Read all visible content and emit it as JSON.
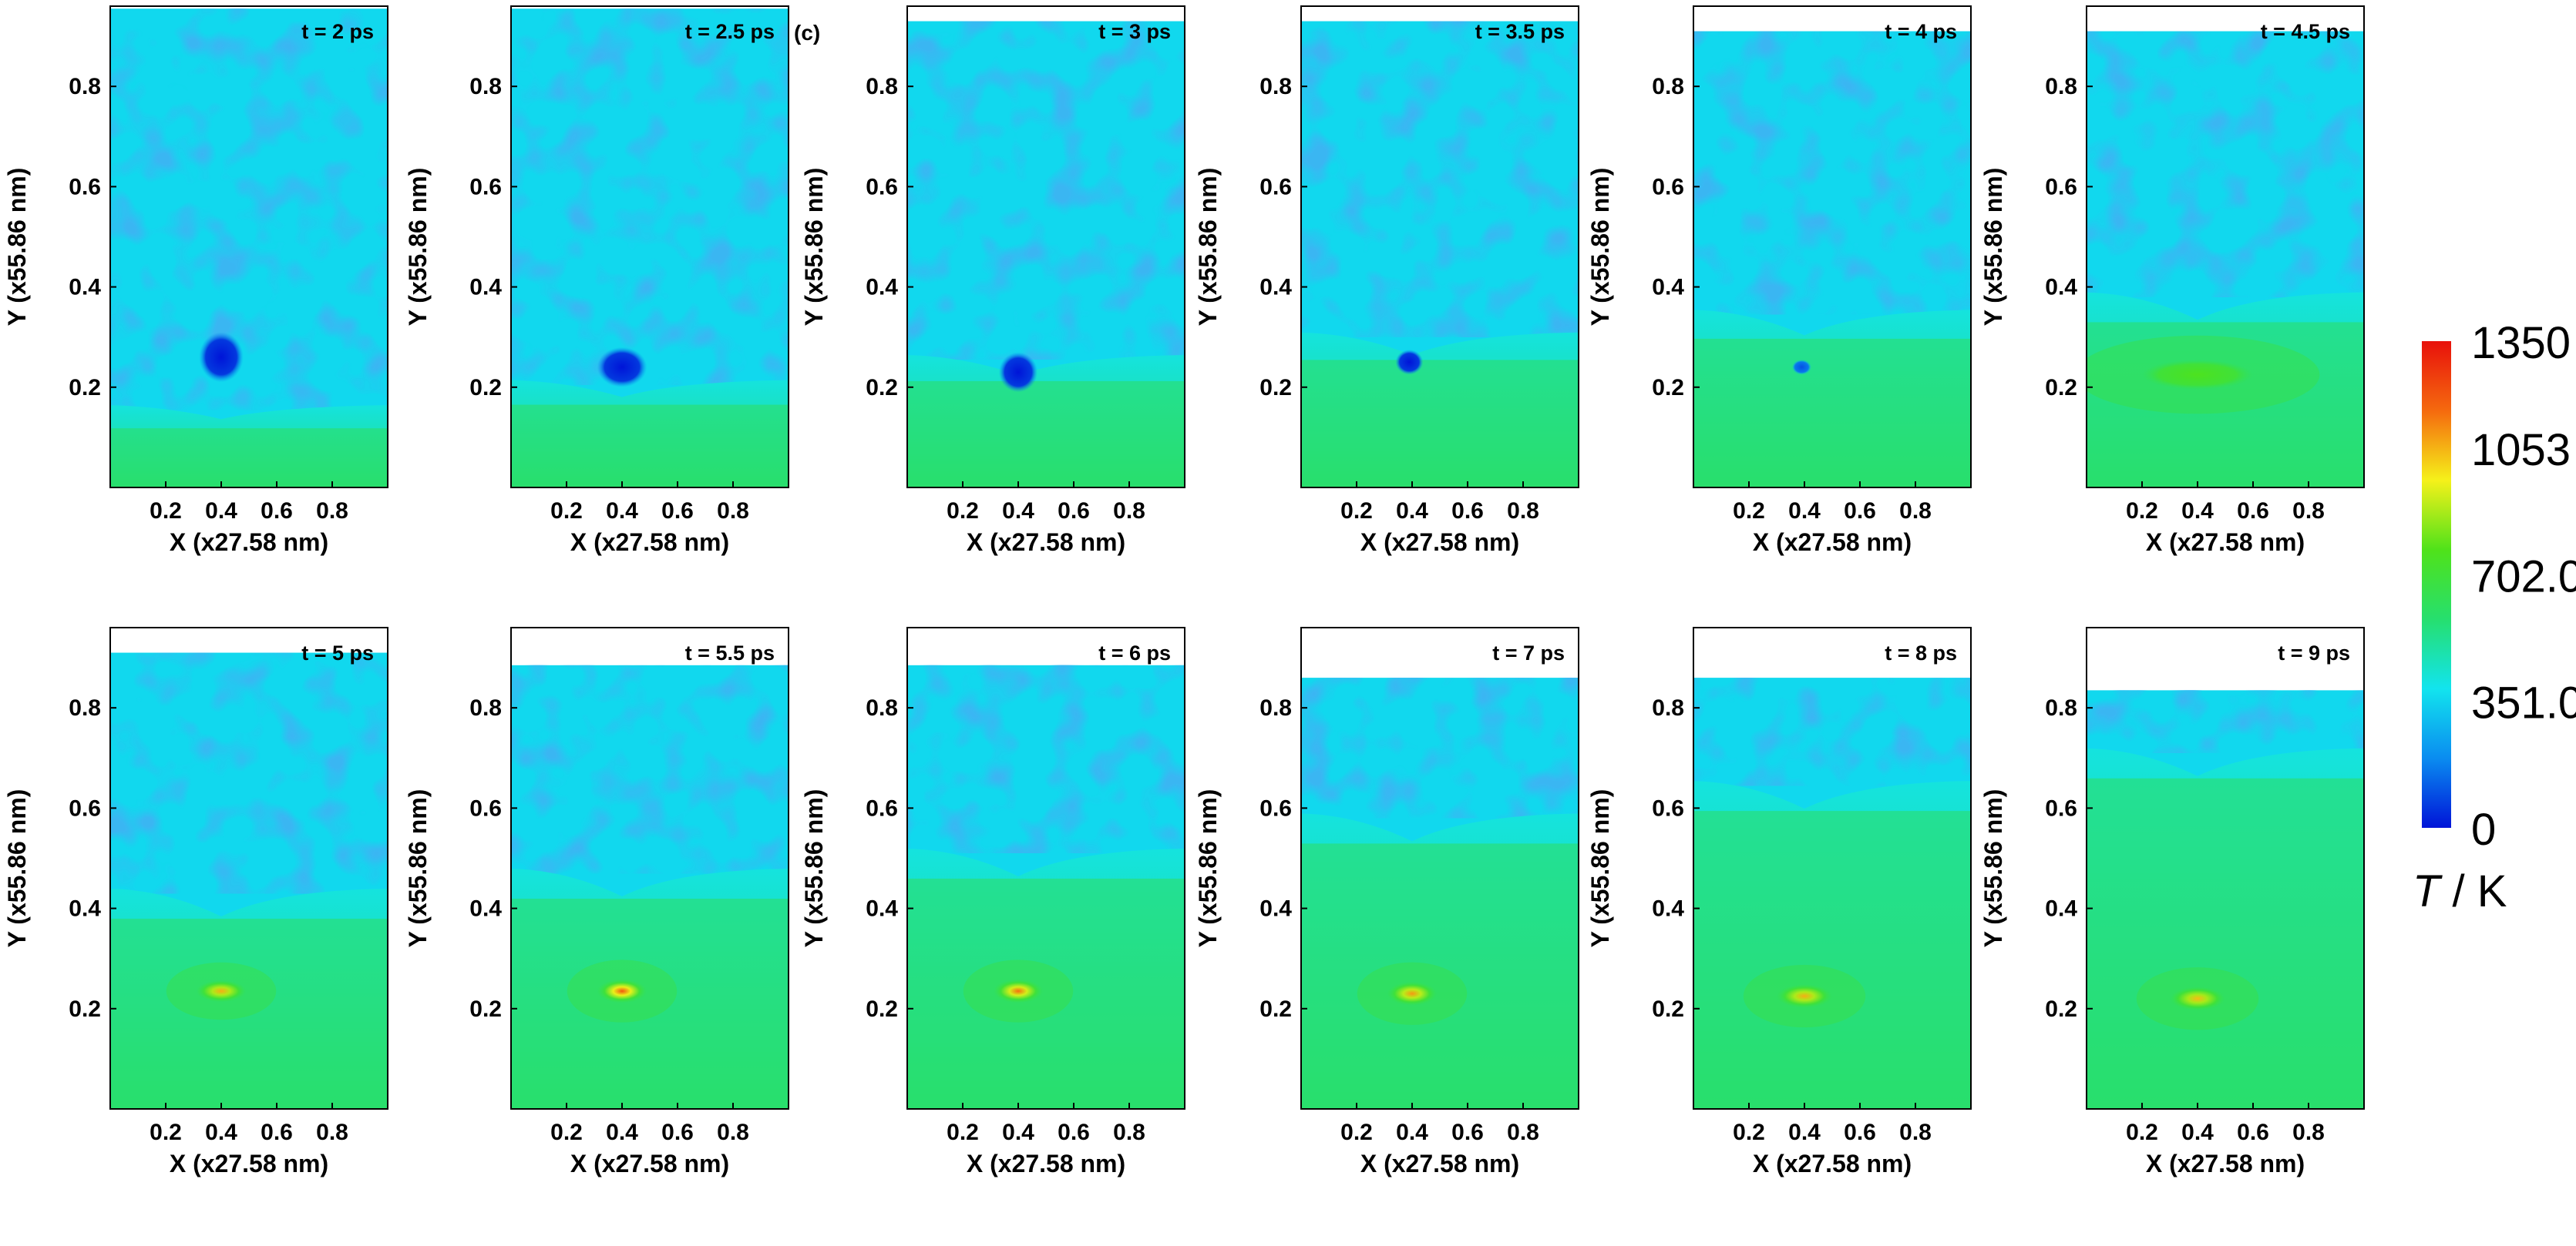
{
  "panel_tag": "(c)",
  "chart_data": {
    "type": "heatmap",
    "xlabel": "X (x27.58 nm)",
    "ylabel": "Y (x55.86 nm)",
    "xlim": [
      0,
      1
    ],
    "ylim": [
      0,
      0.96
    ],
    "x_ticks": [
      "0.2",
      "0.4",
      "0.6",
      "0.8"
    ],
    "y_ticks": [
      "0.2",
      "0.4",
      "0.6",
      "0.8"
    ],
    "colorbar": {
      "title_var": "T",
      "title_unit": " / K",
      "ticks": [
        "1350",
        "1053",
        "702.0",
        "351.0",
        "0"
      ],
      "tick_values": [
        1350,
        1053,
        702,
        351,
        0
      ],
      "range": [
        0,
        1350
      ],
      "colors": [
        "#0014d8",
        "#0a8cf0",
        "#12e4ee",
        "#26df6e",
        "#4fe21a",
        "#f5f11a",
        "#f56a0e",
        "#e8110c"
      ]
    },
    "panels": [
      {
        "time": "t = 2 ps",
        "top": 0.955,
        "front": 0.155,
        "spot": {
          "x": 0.4,
          "y": 0.26,
          "T": 0,
          "rx": 0.08,
          "ry": 0.05
        }
      },
      {
        "time": "t = 2.5 ps",
        "top": 0.955,
        "front": 0.205,
        "spot": {
          "x": 0.4,
          "y": 0.24,
          "T": 0,
          "rx": 0.09,
          "ry": 0.04
        }
      },
      {
        "time": "t = 3 ps",
        "top": 0.93,
        "front": 0.255,
        "spot": {
          "x": 0.4,
          "y": 0.23,
          "T": 0,
          "rx": 0.07,
          "ry": 0.04
        }
      },
      {
        "time": "t = 3.5 ps",
        "top": 0.93,
        "front": 0.3,
        "spot": {
          "x": 0.39,
          "y": 0.25,
          "T": 0,
          "rx": 0.05,
          "ry": 0.025
        }
      },
      {
        "time": "t = 4 ps",
        "top": 0.91,
        "front": 0.345,
        "spot": {
          "x": 0.39,
          "y": 0.24,
          "T": 100,
          "rx": 0.035,
          "ry": 0.015
        }
      },
      {
        "time": "t = 4.5 ps",
        "top": 0.91,
        "front": 0.38,
        "spot": {
          "x": 0.4,
          "y": 0.225,
          "T": 760,
          "rx": 0.2,
          "ry": 0.03
        }
      },
      {
        "time": "t = 5 ps",
        "top": 0.91,
        "front": 0.43,
        "spot": {
          "x": 0.4,
          "y": 0.235,
          "T": 1060,
          "rx": 0.09,
          "ry": 0.022
        }
      },
      {
        "time": "t = 5.5 ps",
        "top": 0.885,
        "front": 0.47,
        "spot": {
          "x": 0.4,
          "y": 0.235,
          "T": 1200,
          "rx": 0.09,
          "ry": 0.024
        }
      },
      {
        "time": "t = 6 ps",
        "top": 0.885,
        "front": 0.51,
        "spot": {
          "x": 0.4,
          "y": 0.235,
          "T": 1150,
          "rx": 0.09,
          "ry": 0.024
        }
      },
      {
        "time": "t = 7 ps",
        "top": 0.86,
        "front": 0.58,
        "spot": {
          "x": 0.4,
          "y": 0.23,
          "T": 1090,
          "rx": 0.09,
          "ry": 0.024
        }
      },
      {
        "time": "t = 8 ps",
        "top": 0.86,
        "front": 0.645,
        "spot": {
          "x": 0.4,
          "y": 0.225,
          "T": 1060,
          "rx": 0.1,
          "ry": 0.024
        }
      },
      {
        "time": "t = 9 ps",
        "top": 0.835,
        "front": 0.71,
        "spot": {
          "x": 0.4,
          "y": 0.22,
          "T": 1040,
          "rx": 0.1,
          "ry": 0.024
        }
      }
    ]
  }
}
